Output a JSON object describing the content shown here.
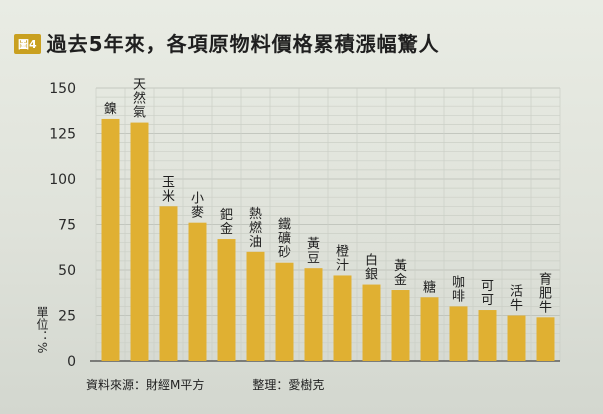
{
  "figure_label": "圖4",
  "title": "過去5年來，各項原物料價格累積漲幅驚人",
  "source": "資料來源：財經M平方",
  "editor": "整理：愛樹克",
  "chart_data": {
    "type": "bar",
    "ylabel": "單位：%",
    "ylim": [
      0,
      150
    ],
    "yticks": [
      0,
      25,
      50,
      75,
      100,
      125,
      150
    ],
    "grid": true,
    "bar_color": "#e0b032",
    "categories": [
      "鎳",
      "天然氣",
      "玉米",
      "小麥",
      "鈀金",
      "熱燃油",
      "鐵礦砂",
      "黃豆",
      "橙汁",
      "白銀",
      "黃金",
      "糖",
      "咖啡",
      "可可",
      "活牛",
      "育肥牛"
    ],
    "values": [
      133,
      131,
      85,
      76,
      67,
      60,
      54,
      51,
      47,
      42,
      39,
      35,
      30,
      28,
      25,
      24
    ]
  }
}
